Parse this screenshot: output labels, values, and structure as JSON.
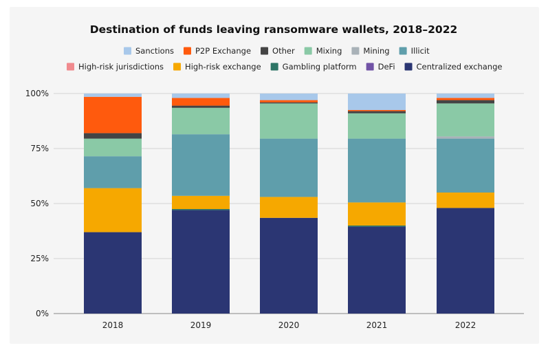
{
  "chart_data": {
    "type": "bar",
    "stacked": true,
    "title": "Destination of funds leaving ransomware wallets, 2018–2022",
    "xlabel": "",
    "ylabel": "",
    "categories": [
      "2018",
      "2019",
      "2020",
      "2021",
      "2022"
    ],
    "ylim": [
      0,
      100
    ],
    "yticks": [
      0,
      25,
      50,
      75,
      100
    ],
    "ytick_labels": [
      "0%",
      "25%",
      "50%",
      "75%",
      "100%"
    ],
    "grid": true,
    "legend_position": "top",
    "series": [
      {
        "name": "Centralized exchange",
        "color": "#2b3673",
        "values": [
          37,
          47,
          43.5,
          39.5,
          48
        ]
      },
      {
        "name": "DeFi",
        "color": "#7153a6",
        "values": [
          0,
          0,
          0,
          0,
          0
        ]
      },
      {
        "name": "Gambling platform",
        "color": "#2e7566",
        "values": [
          0,
          0.5,
          0,
          0.5,
          0
        ]
      },
      {
        "name": "High-risk exchange",
        "color": "#f6a800",
        "values": [
          20,
          6,
          9.5,
          10.5,
          7
        ]
      },
      {
        "name": "High-risk jurisdictions",
        "color": "#f08a8e",
        "values": [
          0,
          0,
          0,
          0,
          0
        ]
      },
      {
        "name": "Illicit",
        "color": "#5f9eab",
        "values": [
          14.5,
          28,
          26.5,
          29,
          24.5
        ]
      },
      {
        "name": "Mining",
        "color": "#a9b2b8",
        "values": [
          0,
          0,
          0,
          0,
          1
        ]
      },
      {
        "name": "Mixing",
        "color": "#8ac9a6",
        "values": [
          8,
          12,
          16,
          11.5,
          15
        ]
      },
      {
        "name": "Other",
        "color": "#444444",
        "values": [
          2.5,
          1,
          0.5,
          1,
          1.5
        ]
      },
      {
        "name": "P2P Exchange",
        "color": "#ff5a0d",
        "values": [
          16.5,
          3.5,
          1,
          0.5,
          1
        ]
      },
      {
        "name": "Sanctions",
        "color": "#a8c8ea",
        "values": [
          1.5,
          2,
          3,
          7.5,
          2
        ]
      }
    ],
    "legend_rows": [
      [
        "Sanctions",
        "P2P Exchange",
        "Other",
        "Mixing",
        "Mining",
        "Illicit"
      ],
      [
        "High-risk jurisdictions",
        "High-risk exchange",
        "Gambling platform",
        "DeFi",
        "Centralized exchange"
      ]
    ]
  }
}
